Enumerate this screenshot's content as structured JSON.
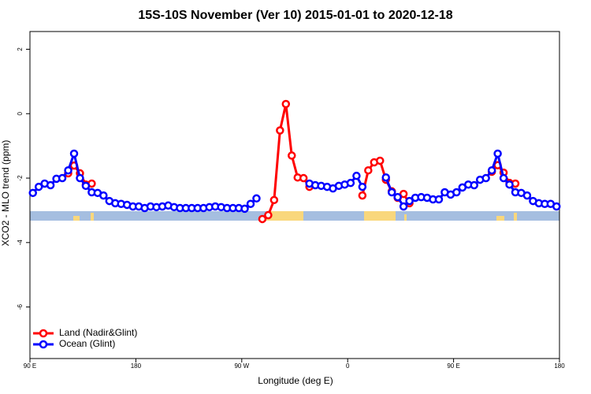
{
  "chart_data": {
    "type": "line",
    "title": "15S-10S November (Ver 10)   2015-01-01 to 2020-12-18",
    "x_label": "Longitude (deg E)",
    "y_label": "XCO2 - MLO trend (ppm)",
    "x": [
      92.5,
      97.5,
      102.5,
      107.5,
      112.5,
      117.5,
      122.5,
      127.5,
      132.5,
      137.5,
      142.5,
      147.5,
      152.5,
      157.5,
      162.5,
      167.5,
      172.5,
      177.5,
      182.5,
      187.5,
      192.5,
      197.5,
      202.5,
      207.5,
      212.5,
      217.5,
      222.5,
      227.5,
      232.5,
      237.5,
      242.5,
      247.5,
      252.5,
      257.5,
      262.5,
      267.5,
      272.5,
      277.5,
      282.5,
      287.5,
      292.5,
      297.5,
      302.5,
      307.5,
      312.5,
      317.5,
      322.5,
      327.5,
      332.5,
      337.5,
      342.5,
      347.5,
      352.5,
      357.5,
      362.5,
      367.5,
      372.5,
      377.5,
      382.5,
      387.5,
      392.5,
      397.5,
      402.5,
      407.5,
      412.5,
      417.5,
      422.5,
      427.5,
      432.5,
      437.5,
      442.5,
      447.5,
      452.5,
      457.5,
      462.5,
      467.5,
      472.5,
      477.5,
      482.5,
      487.5,
      492.5,
      497.5,
      502.5,
      507.5,
      512.5,
      517.5,
      522.5,
      527.5,
      532.5,
      537.5
    ],
    "series": [
      {
        "name": "Land (Nadir&Glint)",
        "color": "#ff0000",
        "values": [
          null,
          null,
          null,
          null,
          null,
          null,
          -1.85,
          -1.61,
          -1.85,
          -2.2,
          -2.17,
          null,
          null,
          null,
          null,
          null,
          null,
          null,
          null,
          null,
          null,
          null,
          null,
          null,
          null,
          null,
          null,
          null,
          null,
          null,
          null,
          null,
          null,
          null,
          null,
          null,
          null,
          null,
          null,
          -3.27,
          -3.15,
          -2.68,
          -0.52,
          0.3,
          -1.3,
          -1.98,
          -2.0,
          -2.27,
          null,
          null,
          null,
          null,
          null,
          null,
          null,
          null,
          -2.54,
          -1.76,
          -1.51,
          -1.46,
          -2.05,
          -2.41,
          -2.61,
          -2.49,
          -2.78,
          null,
          null,
          null,
          null,
          null,
          null,
          null,
          null,
          null,
          null,
          null,
          null,
          null,
          -1.8,
          -1.6,
          -1.83,
          -2.15,
          -2.17,
          null,
          null,
          null,
          null,
          null,
          null,
          null
        ]
      },
      {
        "name": "Ocean (Glint)",
        "color": "#0000ff",
        "values": [
          -2.46,
          -2.27,
          -2.17,
          -2.22,
          -2.02,
          -2.0,
          -1.76,
          -1.24,
          -2.0,
          -2.24,
          -2.44,
          -2.46,
          -2.54,
          -2.71,
          -2.78,
          -2.8,
          -2.83,
          -2.88,
          -2.88,
          -2.93,
          -2.88,
          -2.9,
          -2.88,
          -2.85,
          -2.9,
          -2.93,
          -2.93,
          -2.93,
          -2.93,
          -2.93,
          -2.9,
          -2.88,
          -2.9,
          -2.93,
          -2.93,
          -2.93,
          -2.95,
          -2.8,
          -2.63,
          null,
          null,
          null,
          null,
          null,
          null,
          null,
          null,
          -2.17,
          -2.22,
          -2.24,
          -2.27,
          -2.32,
          -2.24,
          -2.2,
          -2.15,
          -1.93,
          -2.27,
          null,
          null,
          null,
          -1.98,
          -2.44,
          -2.59,
          -2.88,
          -2.71,
          -2.61,
          -2.59,
          -2.61,
          -2.66,
          -2.66,
          -2.44,
          -2.51,
          -2.44,
          -2.29,
          -2.2,
          -2.22,
          -2.05,
          -2.0,
          -1.76,
          -1.24,
          -2.0,
          -2.2,
          -2.44,
          -2.46,
          -2.54,
          -2.71,
          -2.78,
          -2.8,
          -2.8,
          -2.88
        ]
      }
    ],
    "xlim": [
      90,
      540
    ],
    "xticks": [
      {
        "value": 90,
        "label": "90 E"
      },
      180,
      {
        "value": 270,
        "label": "90 W"
      },
      {
        "value": 360,
        "label": "0"
      },
      {
        "value": 450,
        "label": "90 E"
      },
      {
        "value": 540,
        "label": "180"
      }
    ],
    "ylim": [
      -7.6,
      2.55
    ],
    "yticks": [
      -6,
      -4,
      -2,
      0,
      2
    ],
    "legend": "bottom-left"
  }
}
